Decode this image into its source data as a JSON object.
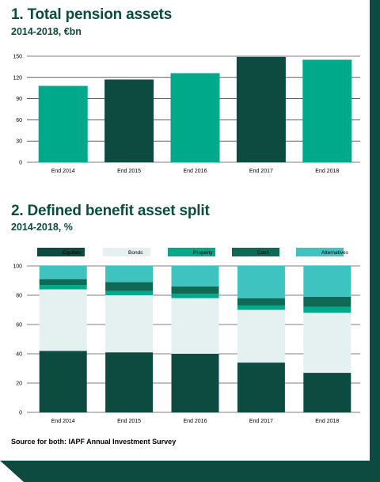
{
  "colors": {
    "dark": "#0d4b40",
    "green": "#00a98a",
    "light": "#e4f1f0",
    "teal": "#0f6a55",
    "aqua": "#3fc3c0"
  },
  "chart_data": [
    {
      "type": "bar",
      "title": "1. Total pension assets",
      "subtitle": "2014-2018, €bn",
      "categories": [
        "End 2014",
        "End 2015",
        "End 2016",
        "End 2017",
        "End 2018"
      ],
      "values": [
        108,
        117,
        126,
        149,
        145
      ],
      "ylim": [
        0,
        150
      ],
      "yticks": [
        0,
        30,
        60,
        90,
        120,
        150
      ],
      "bar_colors": [
        "#00a98a",
        "#0d4b40",
        "#00a98a",
        "#0d4b40",
        "#00a98a"
      ],
      "grid": false
    },
    {
      "type": "bar",
      "stacked": true,
      "title": "2. Defined benefit asset split",
      "subtitle": "2014-2018, %",
      "categories": [
        "End 2014",
        "End 2015",
        "End 2016",
        "End 2017",
        "End 2018"
      ],
      "ylim": [
        0,
        100
      ],
      "yticks": [
        0,
        20,
        40,
        60,
        80,
        100
      ],
      "legend_position": "top",
      "series": [
        {
          "name": "Equities",
          "color": "#0d4b40",
          "values": [
            42,
            41,
            40,
            34,
            27
          ]
        },
        {
          "name": "Bonds",
          "color": "#e4f1f0",
          "values": [
            42,
            39,
            38,
            36,
            41
          ]
        },
        {
          "name": "Property",
          "color": "#00a98a",
          "values": [
            3,
            3,
            3,
            3,
            4
          ]
        },
        {
          "name": "Cash",
          "color": "#0f6a55",
          "values": [
            4,
            6,
            5,
            5,
            7
          ]
        },
        {
          "name": "Alternatives",
          "color": "#3fc3c0",
          "values": [
            9,
            11,
            14,
            22,
            21
          ]
        }
      ]
    }
  ],
  "source": "Source for both: IAPF Annual Investment Survey"
}
